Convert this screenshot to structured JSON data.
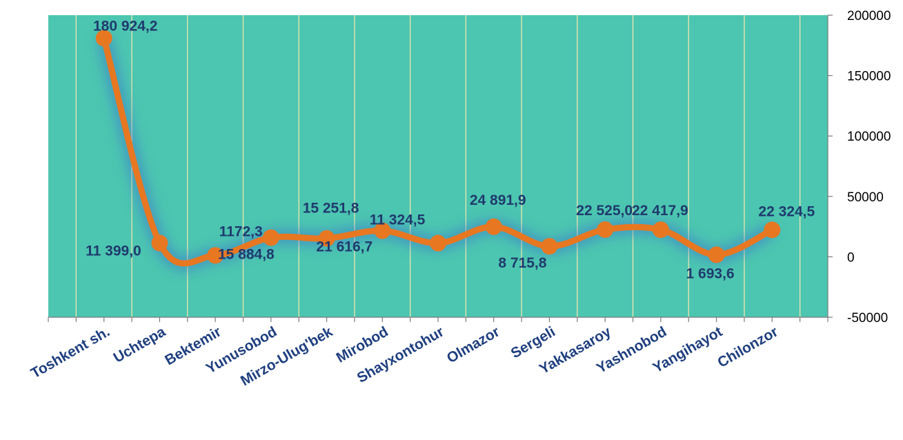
{
  "chart_data": {
    "type": "line",
    "categories": [
      "Toshkent sh.",
      "Uchtepa",
      "Bektemir",
      "Yunusobod",
      "Mirzo-Ulug'bek",
      "Mirobod",
      "Shayxontohur",
      "Olmazor",
      "Sergeli",
      "Yakkasaroy",
      "Yashnobod",
      "Yangihayot",
      "Chilonzor"
    ],
    "series": [
      {
        "values": [
          180924.2,
          11399.0,
          1172.3,
          15884.8,
          15251.8,
          21616.7,
          11324.5,
          24891.9,
          8715.8,
          22525.0,
          22417.9,
          1693.6,
          22324.5
        ],
        "labels": [
          "180 924,2",
          "11 399,0",
          "1172,3",
          "15 884,8",
          "15 251,8",
          "21 616,7",
          "11 324,5",
          "24 891,9",
          "8 715,8",
          "22 525,0",
          "22 417,9",
          "1 693,6",
          "22 324,5"
        ],
        "color": "#e87722"
      }
    ],
    "y_ticks": [
      "200000",
      "150000",
      "100000",
      "50000",
      "0",
      "-50000"
    ],
    "ylim": [
      -50000,
      200000
    ],
    "y_axis_position": "right",
    "title": "",
    "xlabel": "",
    "ylabel": "",
    "grid": "vertical",
    "legend": "none",
    "plot_background": "#4cc6b0",
    "gridline_color": "#f2e6b0",
    "label_color": "#1f3a6e",
    "category_label_color": "#1f3f7f"
  }
}
